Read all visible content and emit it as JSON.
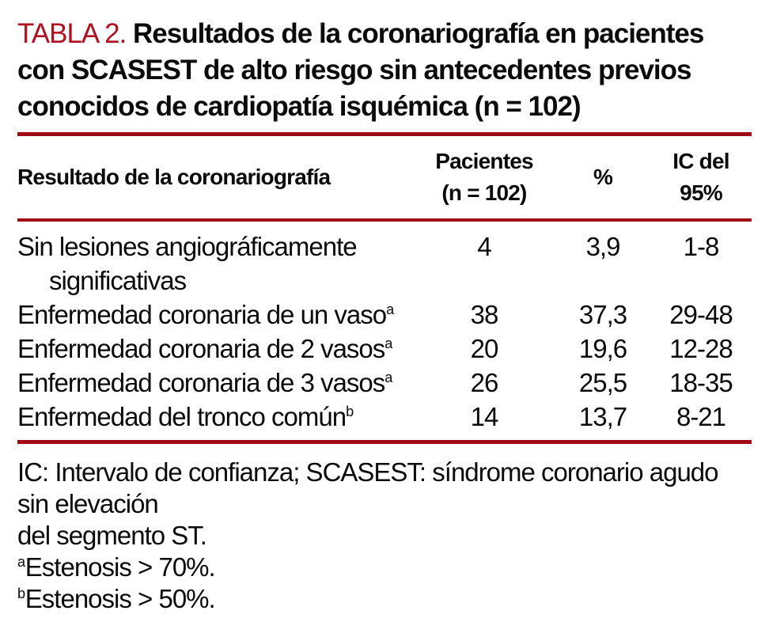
{
  "colors": {
    "accent_red": "#b01020",
    "rule_red": "#a00a12",
    "text": "#0b0b0b",
    "background": "#ffffff"
  },
  "title": {
    "label": "TABLA 2.",
    "text": "Resultados de la coronariografía en pacientes con SCASEST de alto riesgo sin antecedentes previos conocidos de cardiopatía isquémica (n = 102)"
  },
  "table": {
    "columns": [
      {
        "label": "Resultado de la coronariografía"
      },
      {
        "label": "Pacientes\n(n = 102)"
      },
      {
        "label": "%"
      },
      {
        "label": "IC del\n95%"
      }
    ],
    "rows": [
      {
        "label": "Sin lesiones angiográficamente significativas",
        "sup": "",
        "pacientes": "4",
        "pct": "3,9",
        "ic": "1-8"
      },
      {
        "label": "Enfermedad coronaria de un vaso",
        "sup": "a",
        "pacientes": "38",
        "pct": "37,3",
        "ic": "29-48"
      },
      {
        "label": "Enfermedad coronaria de 2 vasos",
        "sup": "a",
        "pacientes": "20",
        "pct": "19,6",
        "ic": "12-28"
      },
      {
        "label": "Enfermedad coronaria de 3 vasos",
        "sup": "a",
        "pacientes": "26",
        "pct": "25,5",
        "ic": "18-35"
      },
      {
        "label": "Enfermedad del tronco común",
        "sup": "b",
        "pacientes": "14",
        "pct": "13,7",
        "ic": "8-21"
      }
    ]
  },
  "footnotes": [
    {
      "sup": "",
      "text": "IC: Intervalo de confianza; SCASEST: síndrome coronario agudo sin elevación\ndel segmento ST."
    },
    {
      "sup": "a",
      "text": "Estenosis > 70%."
    },
    {
      "sup": "b",
      "text": "Estenosis > 50%."
    }
  ]
}
